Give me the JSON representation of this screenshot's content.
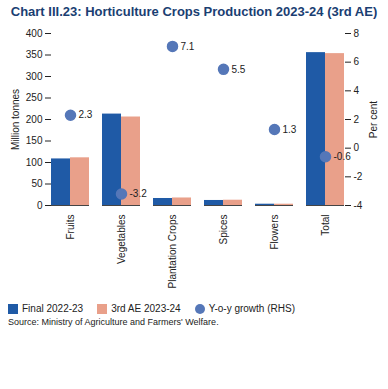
{
  "chart_data": {
    "type": "bar",
    "title": "Chart III.23: Horticulture Crops Production 2023-24 (3rd AE)",
    "source": "Source: Ministry of Agriculture and Farmers' Welfare.",
    "categories": [
      "Fruits",
      "Vegetables",
      "Plantation Crops",
      "Spices",
      "Flowers",
      "Total"
    ],
    "series": [
      {
        "name": "Final 2022-23",
        "color": "#1f5aa6",
        "values": [
          108.3,
          212.6,
          16.3,
          11.7,
          3.0,
          355.5
        ]
      },
      {
        "name": "3rd AE 2023-24",
        "color": "#e9a08a",
        "values": [
          110.9,
          205.8,
          17.5,
          12.3,
          3.0,
          353.2
        ]
      },
      {
        "name": "Y-o-y growth (RHS)",
        "type": "scatter",
        "axis": "y2",
        "marker": "circle",
        "color": "#5577b8",
        "data_labels": true,
        "values": [
          2.3,
          -3.2,
          7.1,
          5.5,
          1.3,
          -0.6
        ]
      }
    ],
    "ylabel": "Million tonnes",
    "y2label": "Per cent",
    "ylim": [
      0,
      400
    ],
    "yticks": [
      0,
      50,
      100,
      150,
      200,
      250,
      300,
      350,
      400
    ],
    "y2lim": [
      -4,
      8
    ],
    "y2ticks": [
      -4,
      -2,
      0,
      2,
      4,
      6,
      8
    ],
    "legend": "bottom",
    "grid": false
  }
}
